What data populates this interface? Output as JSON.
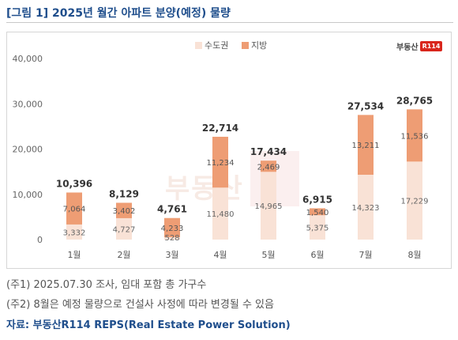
{
  "title": "[그림 1] 2025년 월간 아파트 분양(예정) 물량",
  "logo": {
    "text": "부동산",
    "mark": "R114"
  },
  "watermark": "부동산",
  "notes": [
    "(주1) 2025.07.30 조사, 임대 포함 총 가구수",
    "(주2) 8월은 예정 물량으로 건설사 사정에 따라 변경될 수 있음"
  ],
  "source": "자료: 부동산R114 REPS(Real Estate Power Solution)",
  "colors": {
    "capital": "#f9e2d6",
    "local": "#ee9d74",
    "title": "#1f4e8c"
  },
  "chart_data": {
    "type": "bar",
    "stacked": true,
    "categories": [
      "1월",
      "2월",
      "3월",
      "4월",
      "5월",
      "6월",
      "7월",
      "8월"
    ],
    "series": [
      {
        "name": "수도권",
        "values": [
          3332,
          4727,
          528,
          11480,
          14965,
          5375,
          14323,
          17229
        ]
      },
      {
        "name": "지방",
        "values": [
          7064,
          3402,
          4233,
          11234,
          2469,
          1540,
          13211,
          11536
        ]
      }
    ],
    "totals": [
      10396,
      8129,
      4761,
      22714,
      17434,
      6915,
      27534,
      28765
    ],
    "value_labels": {
      "수도권": [
        "3,332",
        "4,727",
        "528",
        "11,480",
        "14,965",
        "5,375",
        "14,323",
        "17,229"
      ],
      "지방": [
        "7,064",
        "3,402",
        "4,233",
        "11,234",
        "2,469",
        "1,540",
        "13,211",
        "11,536"
      ],
      "totals": [
        "10,396",
        "8,129",
        "4,761",
        "22,714",
        "17,434",
        "6,915",
        "27,534",
        "28,765"
      ]
    },
    "yticks": [
      "0",
      "10,000",
      "20,000",
      "30,000",
      "40,000"
    ],
    "ylim": [
      0,
      40000
    ],
    "legend_position": "top-center"
  }
}
